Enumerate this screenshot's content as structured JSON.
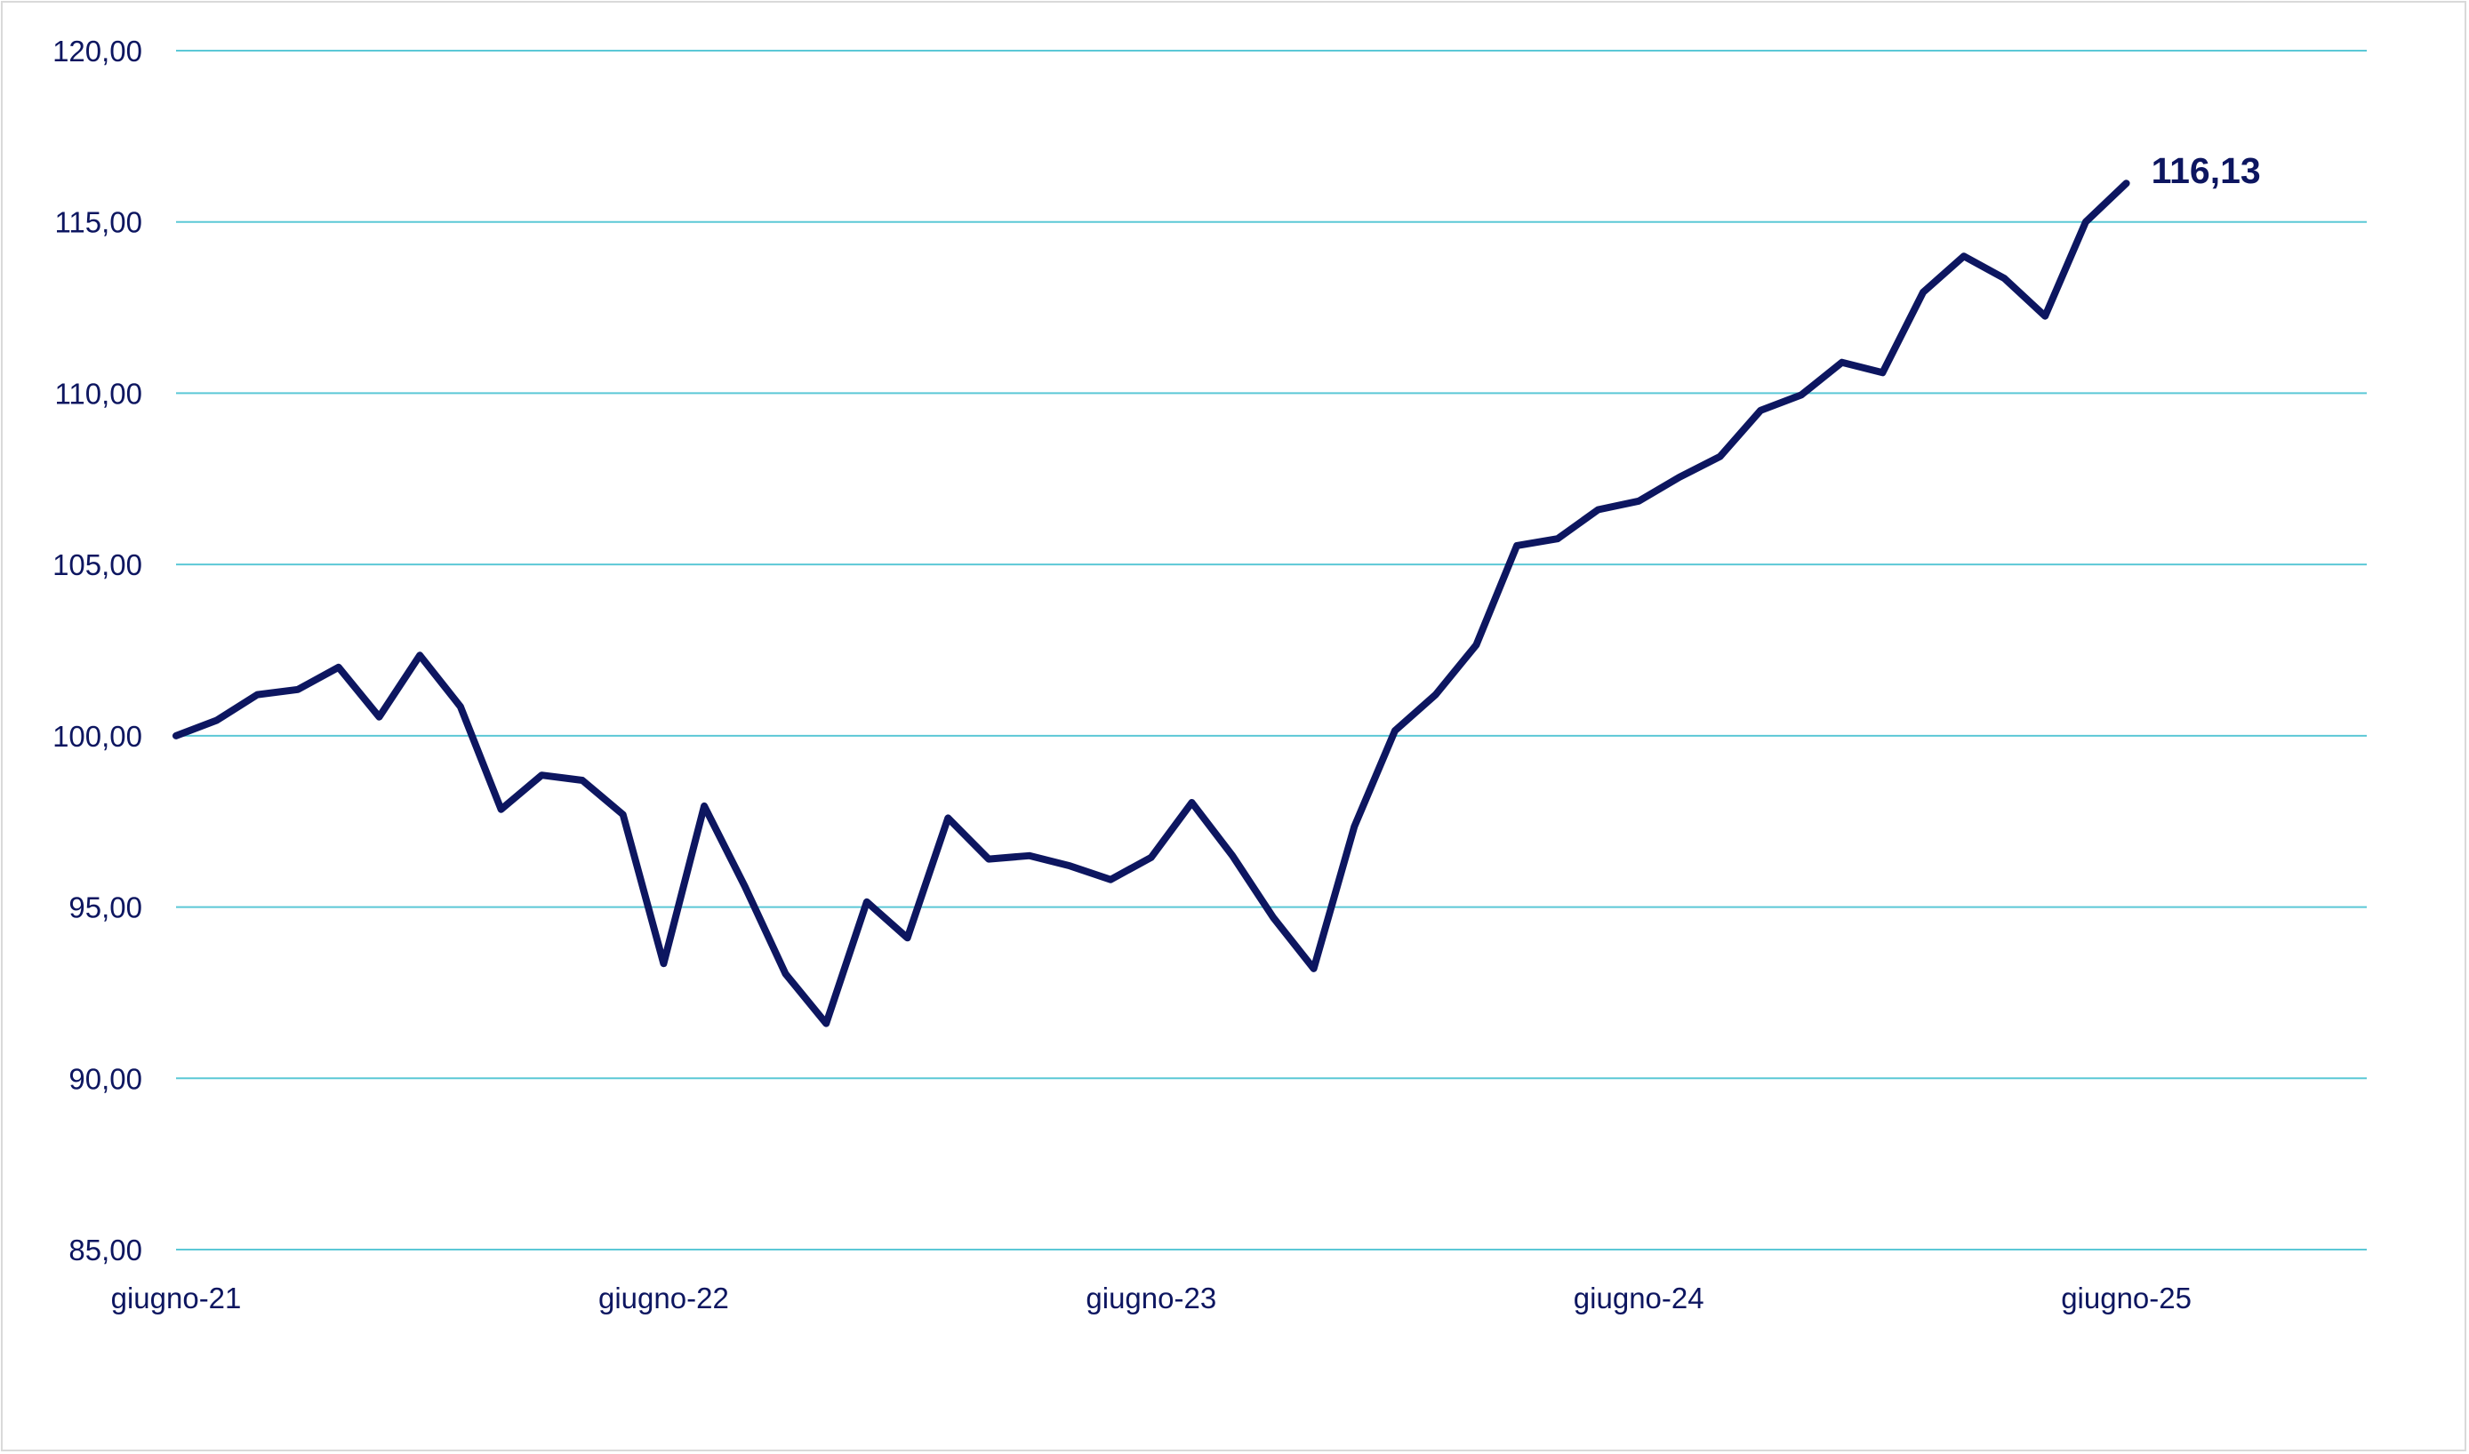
{
  "chart_data": {
    "type": "line",
    "title": "",
    "xlabel": "",
    "ylabel": "",
    "ylim": [
      85,
      120
    ],
    "yticks": [
      85,
      90,
      95,
      100,
      105,
      110,
      115,
      120
    ],
    "ytick_labels": [
      "85,00",
      "90,00",
      "95,00",
      "100,00",
      "105,00",
      "110,00",
      "115,00",
      "120,00"
    ],
    "grid": true,
    "legend": "none",
    "x_tick_labels": [
      "giugno-21",
      "giugno-22",
      "giugno-23",
      "giugno-24",
      "giugno-25"
    ],
    "colors": {
      "line": "#0d1660",
      "grid": "#5bc8d6",
      "text": "#0d1660"
    },
    "series": [
      {
        "values": [
          100.0,
          100.45,
          101.2,
          101.35,
          102.0,
          100.55,
          102.35,
          100.85,
          97.85,
          98.85,
          98.7,
          97.7,
          93.35,
          97.95,
          95.6,
          93.05,
          91.6,
          95.15,
          94.1,
          97.6,
          96.4,
          96.5,
          96.2,
          95.8,
          96.45,
          98.05,
          96.5,
          94.7,
          93.2,
          97.35,
          100.15,
          101.2,
          102.65,
          105.55,
          105.75,
          106.6,
          106.85,
          107.55,
          108.15,
          109.5,
          109.95,
          110.9,
          110.6,
          112.95,
          114.0,
          113.35,
          112.25,
          115.0,
          116.13
        ],
        "end_label": "116,13"
      }
    ]
  }
}
